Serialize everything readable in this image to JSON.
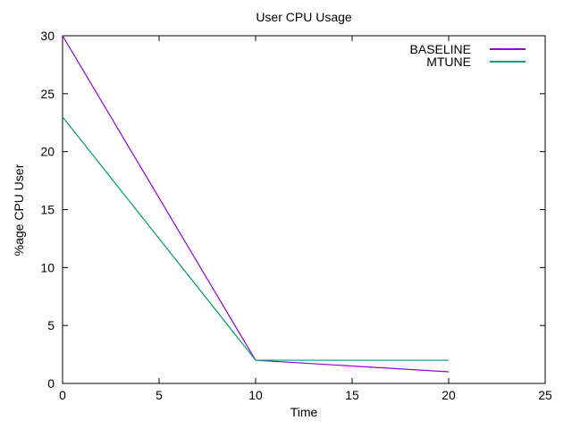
{
  "chart_data": {
    "type": "line",
    "title": "User CPU Usage",
    "xlabel": "Time",
    "ylabel": "%age CPU User",
    "xlim": [
      0,
      25
    ],
    "ylim": [
      0,
      30
    ],
    "xticks": [
      0,
      5,
      10,
      15,
      20,
      25
    ],
    "yticks": [
      0,
      5,
      10,
      15,
      20,
      25,
      30
    ],
    "grid": false,
    "legend_position": "inside-top-right",
    "border_color": "#000000",
    "series": [
      {
        "name": "BASELINE",
        "color": "#9400d3",
        "x": [
          0,
          10,
          20
        ],
        "y": [
          30,
          2,
          1
        ]
      },
      {
        "name": "MTUNE",
        "color": "#009e73",
        "x": [
          0,
          10,
          20
        ],
        "y": [
          23,
          2,
          2
        ]
      }
    ]
  }
}
